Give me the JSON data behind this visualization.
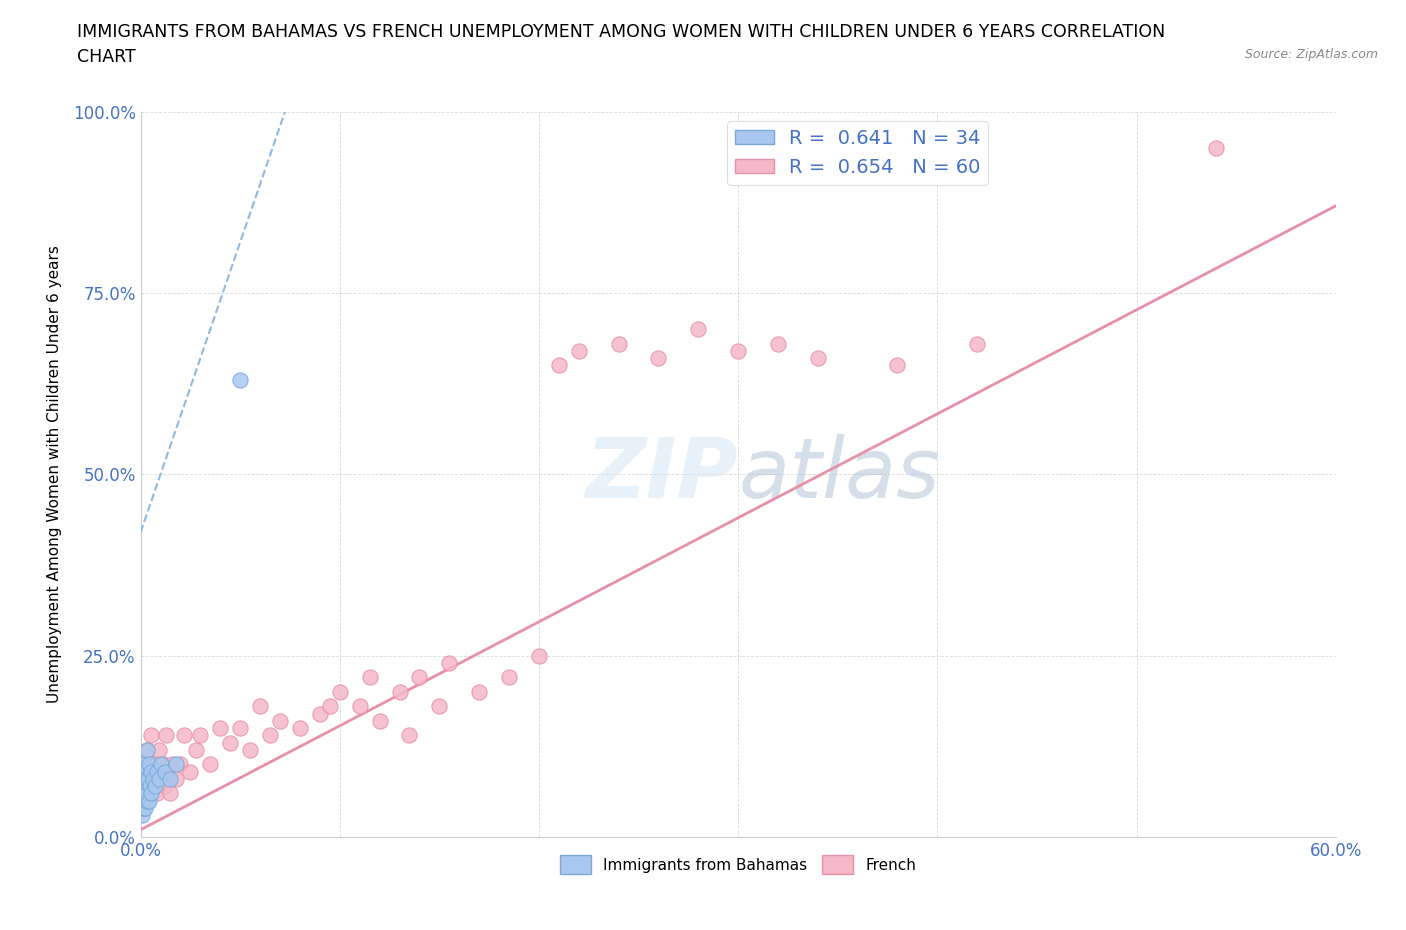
{
  "title_line1": "IMMIGRANTS FROM BAHAMAS VS FRENCH UNEMPLOYMENT AMONG WOMEN WITH CHILDREN UNDER 6 YEARS CORRELATION",
  "title_line2": "CHART",
  "source_text": "Source: ZipAtlas.com",
  "ylabel": "Unemployment Among Women with Children Under 6 years",
  "xlim": [
    0.0,
    0.6
  ],
  "ylim": [
    0.0,
    1.0
  ],
  "xticks": [
    0.0,
    0.1,
    0.2,
    0.3,
    0.4,
    0.5,
    0.6
  ],
  "xticklabels": [
    "0.0%",
    "",
    "",
    "",
    "",
    "",
    "60.0%"
  ],
  "yticks": [
    0.0,
    0.25,
    0.5,
    0.75,
    1.0
  ],
  "yticklabels": [
    "0.0%",
    "25.0%",
    "50.0%",
    "75.0%",
    "100.0%"
  ],
  "blue_color": "#a8c8f0",
  "pink_color": "#f5b8c8",
  "blue_edge_color": "#7aa8d8",
  "pink_edge_color": "#e890a8",
  "blue_line_color": "#90b8e0",
  "pink_line_color": "#e890a8",
  "legend_text_color": "#4472c4",
  "r_blue": 0.641,
  "n_blue": 34,
  "r_pink": 0.654,
  "n_pink": 60,
  "blue_scatter_x": [
    0.0003,
    0.0005,
    0.0006,
    0.0008,
    0.001,
    0.001,
    0.0012,
    0.0013,
    0.0015,
    0.0016,
    0.0018,
    0.002,
    0.002,
    0.0022,
    0.0024,
    0.0026,
    0.003,
    0.003,
    0.0032,
    0.0035,
    0.004,
    0.004,
    0.0045,
    0.005,
    0.005,
    0.006,
    0.007,
    0.008,
    0.009,
    0.01,
    0.012,
    0.015,
    0.018,
    0.05
  ],
  "blue_scatter_y": [
    0.04,
    0.05,
    0.03,
    0.06,
    0.04,
    0.08,
    0.05,
    0.07,
    0.04,
    0.1,
    0.06,
    0.05,
    0.09,
    0.07,
    0.04,
    0.08,
    0.05,
    0.12,
    0.06,
    0.08,
    0.05,
    0.1,
    0.07,
    0.06,
    0.09,
    0.08,
    0.07,
    0.09,
    0.08,
    0.1,
    0.09,
    0.08,
    0.1,
    0.63
  ],
  "pink_scatter_x": [
    0.0005,
    0.001,
    0.0015,
    0.002,
    0.002,
    0.003,
    0.003,
    0.004,
    0.005,
    0.005,
    0.006,
    0.007,
    0.008,
    0.009,
    0.01,
    0.011,
    0.012,
    0.013,
    0.015,
    0.016,
    0.018,
    0.02,
    0.022,
    0.025,
    0.028,
    0.03,
    0.035,
    0.04,
    0.045,
    0.05,
    0.055,
    0.06,
    0.065,
    0.07,
    0.08,
    0.09,
    0.095,
    0.1,
    0.11,
    0.115,
    0.12,
    0.13,
    0.135,
    0.14,
    0.15,
    0.155,
    0.17,
    0.185,
    0.2,
    0.21,
    0.22,
    0.24,
    0.26,
    0.28,
    0.3,
    0.32,
    0.34,
    0.38,
    0.42,
    0.54
  ],
  "pink_scatter_y": [
    0.05,
    0.04,
    0.08,
    0.06,
    0.1,
    0.05,
    0.12,
    0.07,
    0.06,
    0.14,
    0.08,
    0.1,
    0.06,
    0.12,
    0.08,
    0.1,
    0.07,
    0.14,
    0.06,
    0.1,
    0.08,
    0.1,
    0.14,
    0.09,
    0.12,
    0.14,
    0.1,
    0.15,
    0.13,
    0.15,
    0.12,
    0.18,
    0.14,
    0.16,
    0.15,
    0.17,
    0.18,
    0.2,
    0.18,
    0.22,
    0.16,
    0.2,
    0.14,
    0.22,
    0.18,
    0.24,
    0.2,
    0.22,
    0.25,
    0.65,
    0.67,
    0.68,
    0.66,
    0.7,
    0.67,
    0.68,
    0.66,
    0.65,
    0.68,
    0.95
  ],
  "blue_trendline_x": [
    0.0,
    0.075
  ],
  "blue_trendline_y": [
    0.42,
    1.02
  ],
  "pink_trendline_x": [
    0.0,
    0.6
  ],
  "pink_trendline_y": [
    0.01,
    0.87
  ]
}
